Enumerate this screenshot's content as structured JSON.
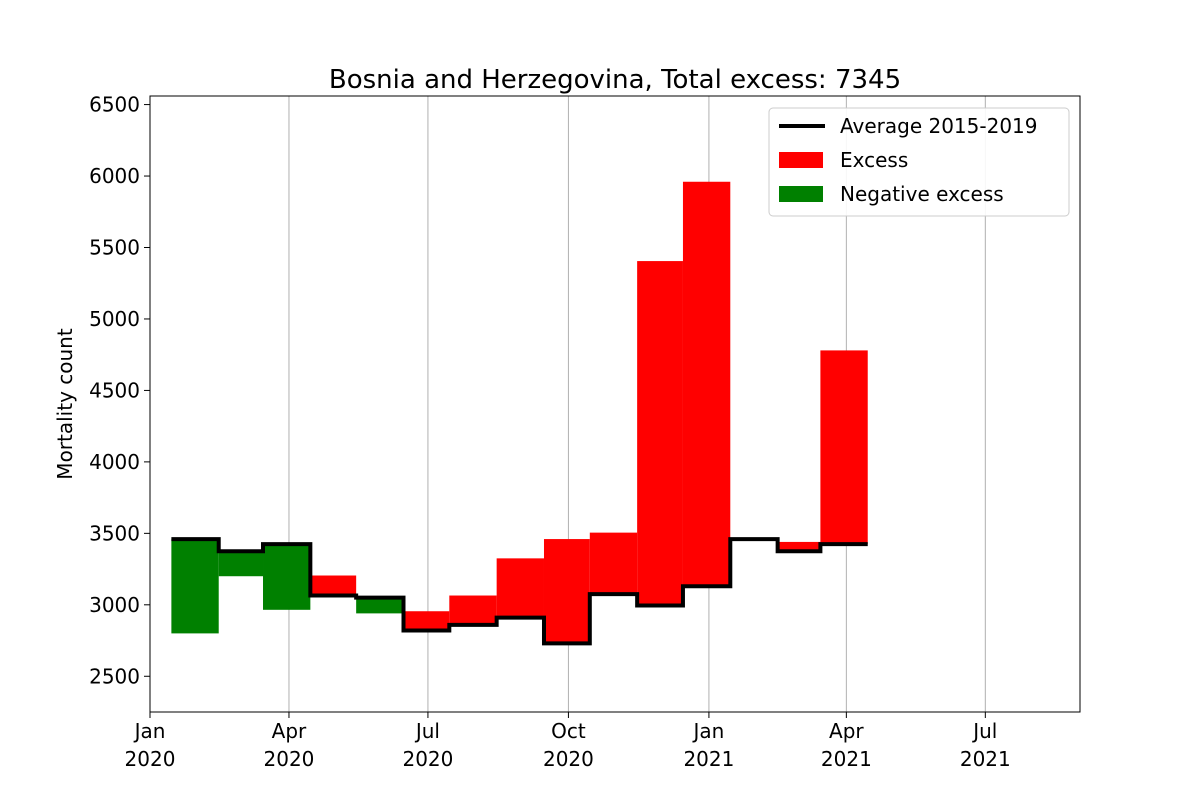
{
  "chart_data": {
    "type": "bar",
    "title": "Bosnia and Herzegovina, Total excess: 7345",
    "xlabel": "",
    "ylabel": "Mortality count",
    "ylim": [
      2250,
      6560
    ],
    "yticks": [
      2500,
      3000,
      3500,
      4000,
      4500,
      5000,
      5500,
      6000,
      6500
    ],
    "xlim": [
      "2020-01-01",
      "2021-09-01"
    ],
    "xticks": [
      {
        "date": "2020-01-01",
        "line1": "Jan",
        "line2": "2020"
      },
      {
        "date": "2020-04-01",
        "line1": "Apr",
        "line2": "2020"
      },
      {
        "date": "2020-07-01",
        "line1": "Jul",
        "line2": "2020"
      },
      {
        "date": "2020-10-01",
        "line1": "Oct",
        "line2": "2020"
      },
      {
        "date": "2021-01-01",
        "line1": "Jan",
        "line2": "2021"
      },
      {
        "date": "2021-04-01",
        "line1": "Apr",
        "line2": "2021"
      },
      {
        "date": "2021-07-01",
        "line1": "Jul",
        "line2": "2021"
      }
    ],
    "grid": "vertical",
    "legend_position": "top-right",
    "legend": [
      {
        "label": "Average 2015-2019",
        "kind": "line",
        "color": "#000000"
      },
      {
        "label": "Excess",
        "kind": "patch",
        "color": "#ff0000"
      },
      {
        "label": "Negative excess",
        "kind": "patch",
        "color": "#008000"
      }
    ],
    "colors": {
      "excess": "#ff0000",
      "negative": "#008000",
      "baseline": "#000000"
    },
    "periods": [
      {
        "start": "2020-01-15",
        "end": "2020-02-15",
        "baseline": 3460,
        "actual": 2800
      },
      {
        "start": "2020-02-15",
        "end": "2020-03-15",
        "baseline": 3375,
        "actual": 3200
      },
      {
        "start": "2020-03-15",
        "end": "2020-04-15",
        "baseline": 3425,
        "actual": 2965
      },
      {
        "start": "2020-04-15",
        "end": "2020-05-15",
        "baseline": 3065,
        "actual": 3205
      },
      {
        "start": "2020-05-15",
        "end": "2020-06-15",
        "baseline": 3050,
        "actual": 2940
      },
      {
        "start": "2020-06-15",
        "end": "2020-07-15",
        "baseline": 2820,
        "actual": 2955
      },
      {
        "start": "2020-07-15",
        "end": "2020-08-15",
        "baseline": 2860,
        "actual": 3065
      },
      {
        "start": "2020-08-15",
        "end": "2020-09-15",
        "baseline": 2910,
        "actual": 3325
      },
      {
        "start": "2020-09-15",
        "end": "2020-10-15",
        "baseline": 2730,
        "actual": 3460
      },
      {
        "start": "2020-10-15",
        "end": "2020-11-15",
        "baseline": 3075,
        "actual": 3505
      },
      {
        "start": "2020-11-15",
        "end": "2020-12-15",
        "baseline": 2995,
        "actual": 5405
      },
      {
        "start": "2020-12-15",
        "end": "2021-01-15",
        "baseline": 3130,
        "actual": 5960
      },
      {
        "start": "2021-01-15",
        "end": "2021-02-15",
        "baseline": 3460,
        "actual": 3460
      },
      {
        "start": "2021-02-15",
        "end": "2021-03-15",
        "baseline": 3375,
        "actual": 3440
      },
      {
        "start": "2021-03-15",
        "end": "2021-04-15",
        "baseline": 3425,
        "actual": 4780
      }
    ]
  }
}
